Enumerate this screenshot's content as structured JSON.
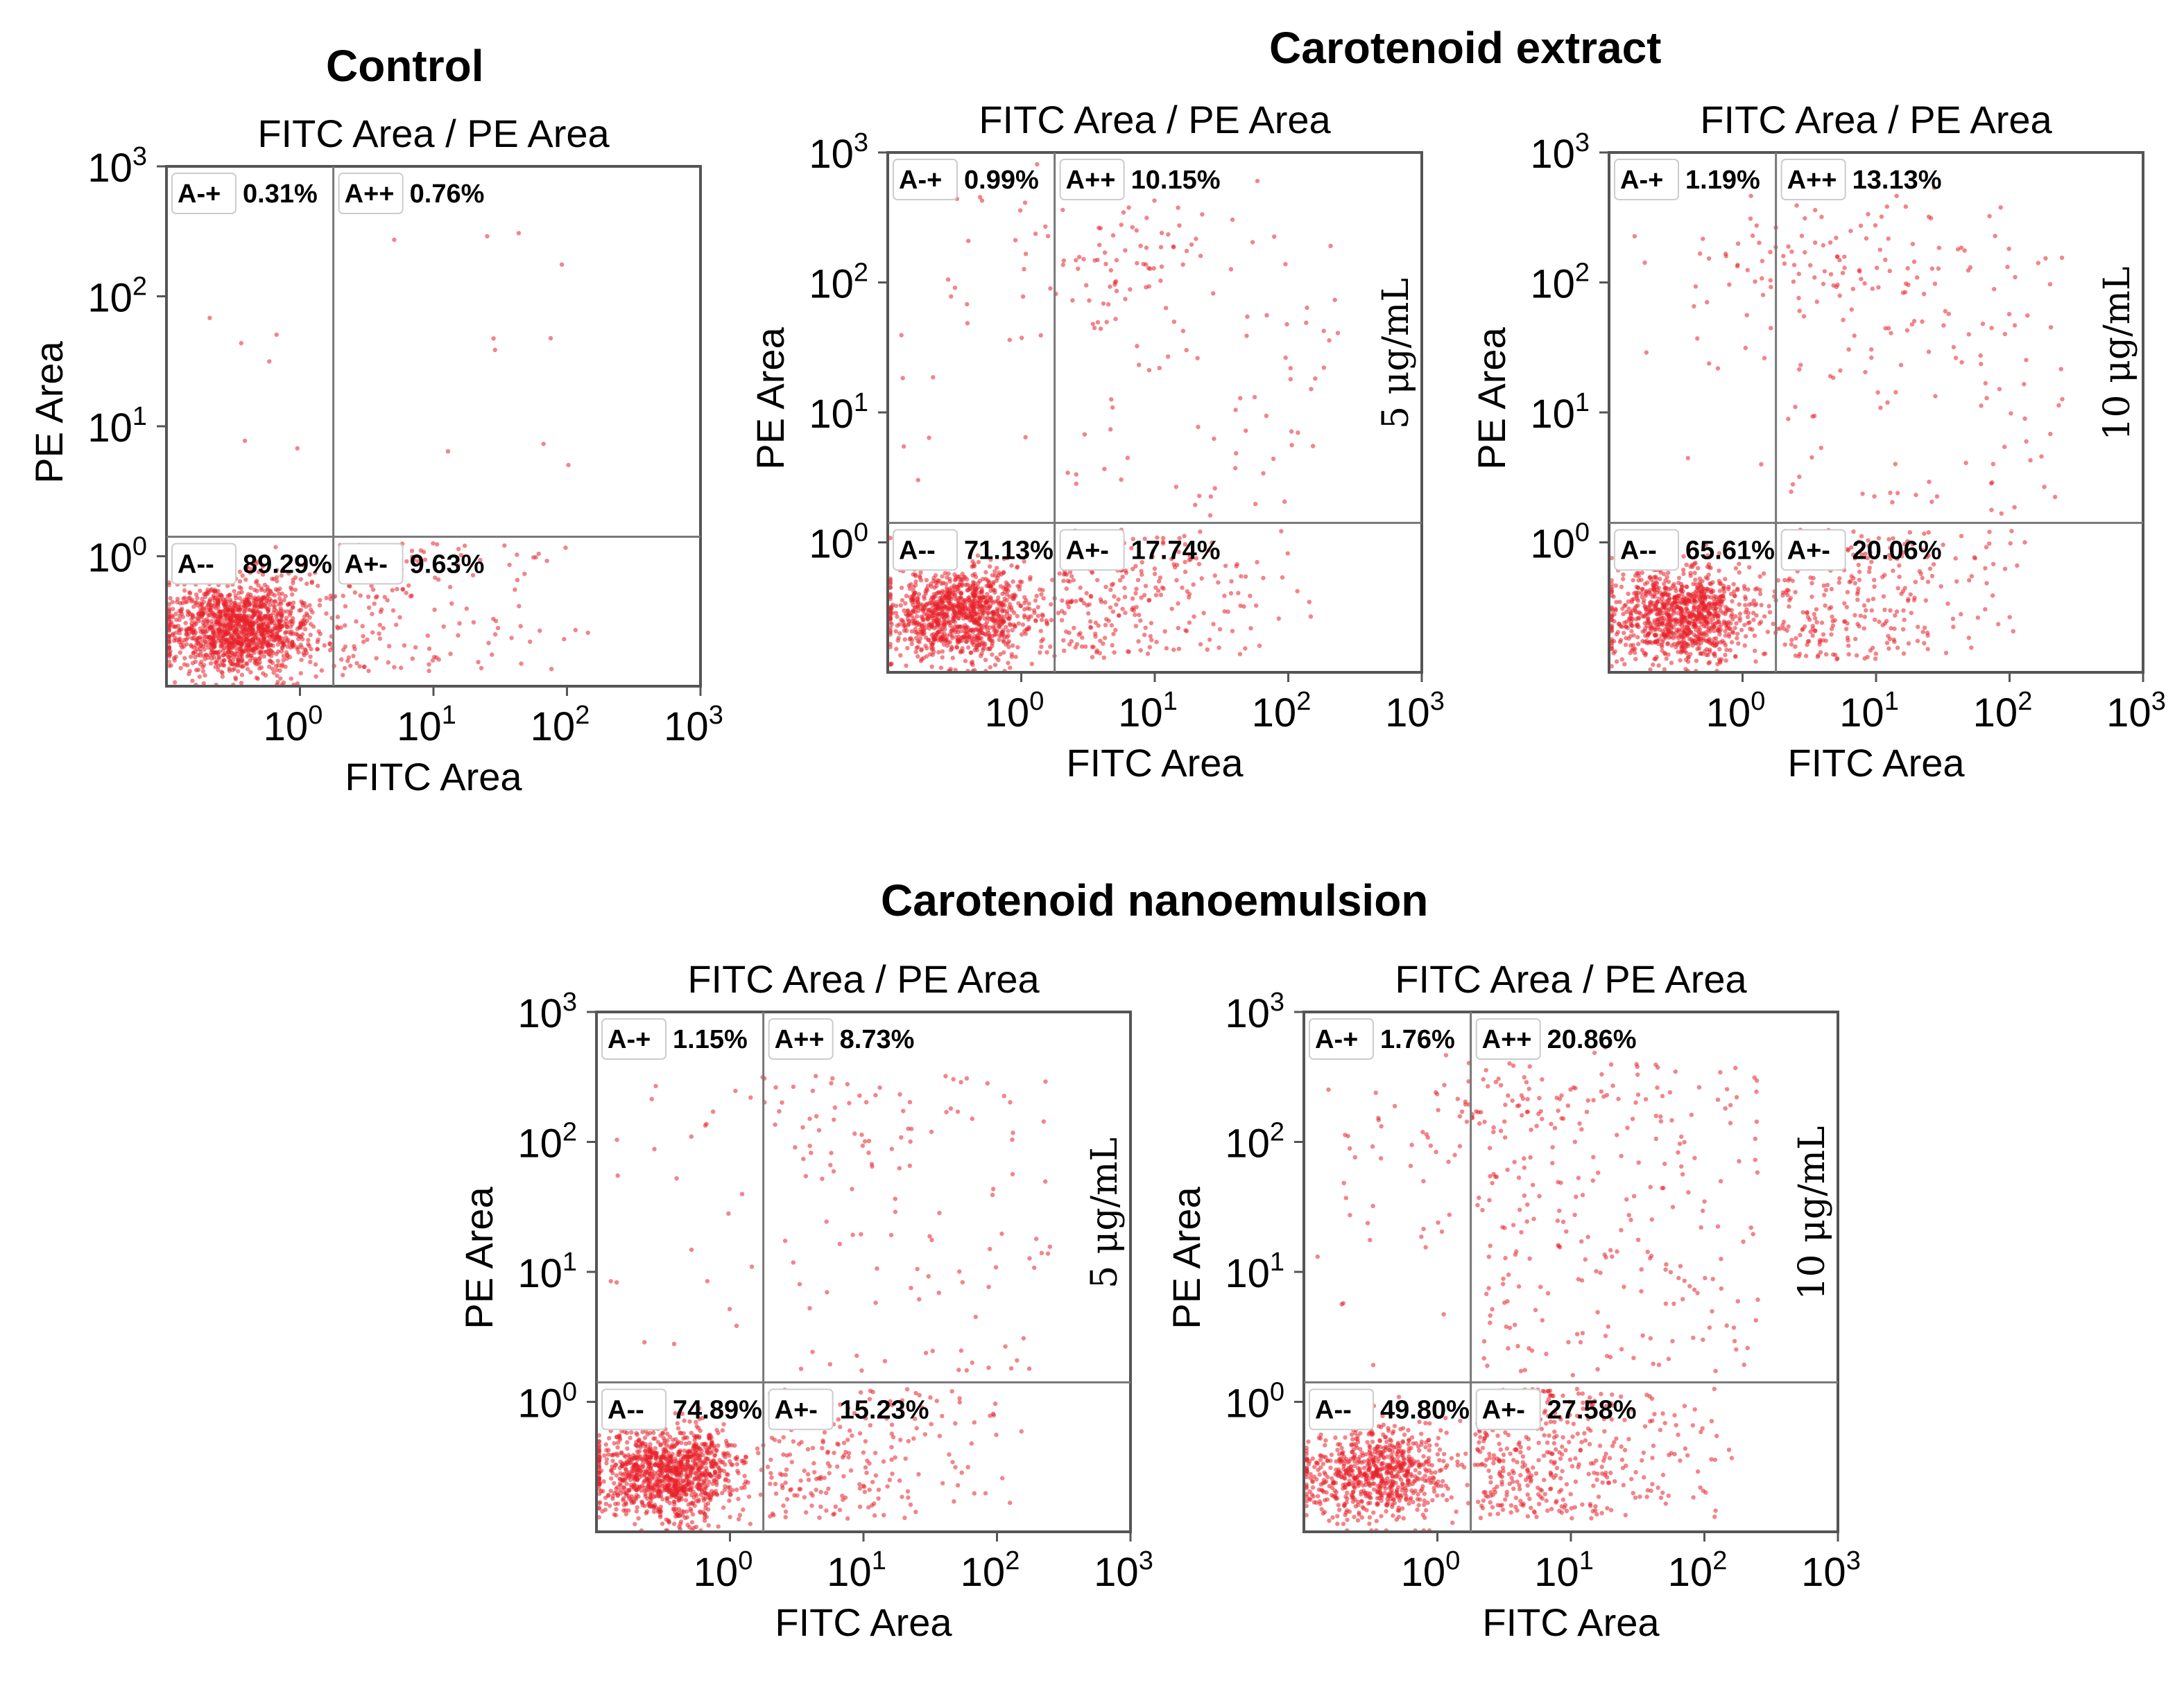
{
  "groups": {
    "control": "Control",
    "extract": "Carotenoid extract",
    "nano": "Carotenoid nanoemulsion"
  },
  "colors": {
    "dot": "#e8202a",
    "frame": "#555555",
    "gate": "#777777"
  },
  "chart_data": [
    {
      "type": "scatter",
      "title": "FITC Area / PE Area",
      "xlabel": "FITC Area",
      "ylabel": "PE Area",
      "xlim": [
        -1.0,
        3.0
      ],
      "ylim": [
        -1.0,
        3.0
      ],
      "scale": "log10",
      "xticks": [
        "10^0",
        "10^1",
        "10^2",
        "10^3"
      ],
      "yticks": [
        "10^0",
        "10^1",
        "10^2",
        "10^3"
      ],
      "gate": {
        "x": 0.25,
        "y": 0.15
      },
      "concentration": "",
      "quadrants": {
        "A-+": "0.31%",
        "A++": "0.76%",
        "A--": "89.29%",
        "A+-": "9.63%"
      }
    },
    {
      "type": "scatter",
      "title": "FITC Area / PE Area",
      "xlabel": "FITC Area",
      "ylabel": "PE Area",
      "xlim": [
        -1.0,
        3.0
      ],
      "ylim": [
        -1.0,
        3.0
      ],
      "scale": "log10",
      "xticks": [
        "10^0",
        "10^1",
        "10^2",
        "10^3"
      ],
      "yticks": [
        "10^0",
        "10^1",
        "10^2",
        "10^3"
      ],
      "gate": {
        "x": 0.25,
        "y": 0.15
      },
      "concentration": "5 μg/mL",
      "quadrants": {
        "A-+": "0.99%",
        "A++": "10.15%",
        "A--": "71.13%",
        "A+-": "17.74%"
      }
    },
    {
      "type": "scatter",
      "title": "FITC Area / PE Area",
      "xlabel": "FITC Area",
      "ylabel": "PE Area",
      "xlim": [
        -1.0,
        3.0
      ],
      "ylim": [
        -1.0,
        3.0
      ],
      "scale": "log10",
      "xticks": [
        "10^0",
        "10^1",
        "10^2",
        "10^3"
      ],
      "yticks": [
        "10^0",
        "10^1",
        "10^2",
        "10^3"
      ],
      "gate": {
        "x": 0.25,
        "y": 0.15
      },
      "concentration": "10 μg/mL",
      "quadrants": {
        "A-+": "1.19%",
        "A++": "13.13%",
        "A--": "65.61%",
        "A+-": "20.06%"
      }
    },
    {
      "type": "scatter",
      "title": "FITC Area / PE Area",
      "xlabel": "FITC Area",
      "ylabel": "PE Area",
      "xlim": [
        -1.0,
        3.0
      ],
      "ylim": [
        -1.0,
        3.0
      ],
      "scale": "log10",
      "xticks": [
        "10^0",
        "10^1",
        "10^2",
        "10^3"
      ],
      "yticks": [
        "10^0",
        "10^1",
        "10^2",
        "10^3"
      ],
      "gate": {
        "x": 0.25,
        "y": 0.15
      },
      "concentration": "5 μg/mL",
      "quadrants": {
        "A-+": "1.15%",
        "A++": "8.73%",
        "A--": "74.89%",
        "A+-": "15.23%"
      }
    },
    {
      "type": "scatter",
      "title": "FITC Area / PE Area",
      "xlabel": "FITC Area",
      "ylabel": "PE Area",
      "xlim": [
        -1.0,
        3.0
      ],
      "ylim": [
        -1.0,
        3.0
      ],
      "scale": "log10",
      "xticks": [
        "10^0",
        "10^1",
        "10^2",
        "10^3"
      ],
      "yticks": [
        "10^0",
        "10^1",
        "10^2",
        "10^3"
      ],
      "gate": {
        "x": 0.25,
        "y": 0.15
      },
      "concentration": "10 μg/mL",
      "quadrants": {
        "A-+": "1.76%",
        "A++": "20.86%",
        "A--": "49.80%",
        "A+-": "27.58%"
      }
    }
  ]
}
